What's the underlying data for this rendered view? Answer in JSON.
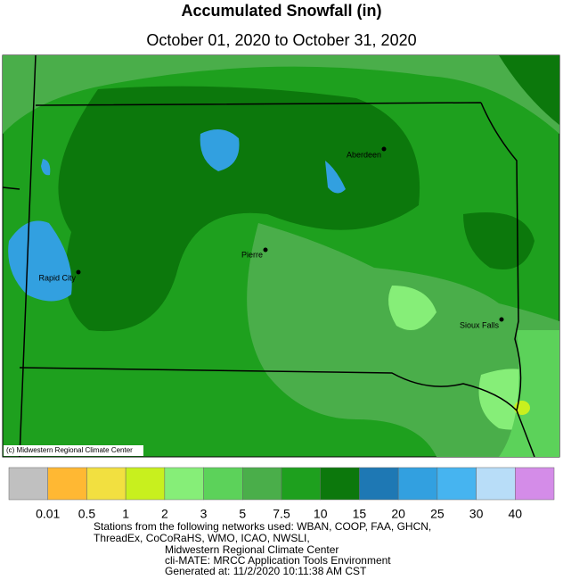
{
  "title": "Accumulated Snowfall (in)",
  "subtitle": "October 01, 2020 to October 31, 2020",
  "map": {
    "cities": [
      "Aberdeen",
      "Pierre",
      "Rapid City",
      "Sioux Falls"
    ],
    "credit": "(c) Midwestern Regional Climate Center"
  },
  "legend": {
    "colors": [
      "#c0c0c0",
      "#ffb833",
      "#f2e040",
      "#c8f01e",
      "#86ee78",
      "#5cd25a",
      "#4aae4a",
      "#1ea01e",
      "#0c780c",
      "#1e78b4",
      "#32a0e0",
      "#46b4f0",
      "#b8ddf8",
      "#d48ce8"
    ],
    "labels": [
      0.01,
      0.5,
      1,
      2,
      3,
      5,
      7.5,
      10,
      15,
      20,
      25,
      30,
      40
    ]
  },
  "footer": [
    "Stations from the following networks used: WBAN, COOP, FAA, GHCN,",
    "ThreadEx, CoCoRaHS, WMO, ICAO, NWSLI,",
    "Midwestern Regional Climate Center",
    "cli-MATE: MRCC Application Tools Environment",
    "Generated at: 11/2/2020 10:11:38 AM CST"
  ]
}
